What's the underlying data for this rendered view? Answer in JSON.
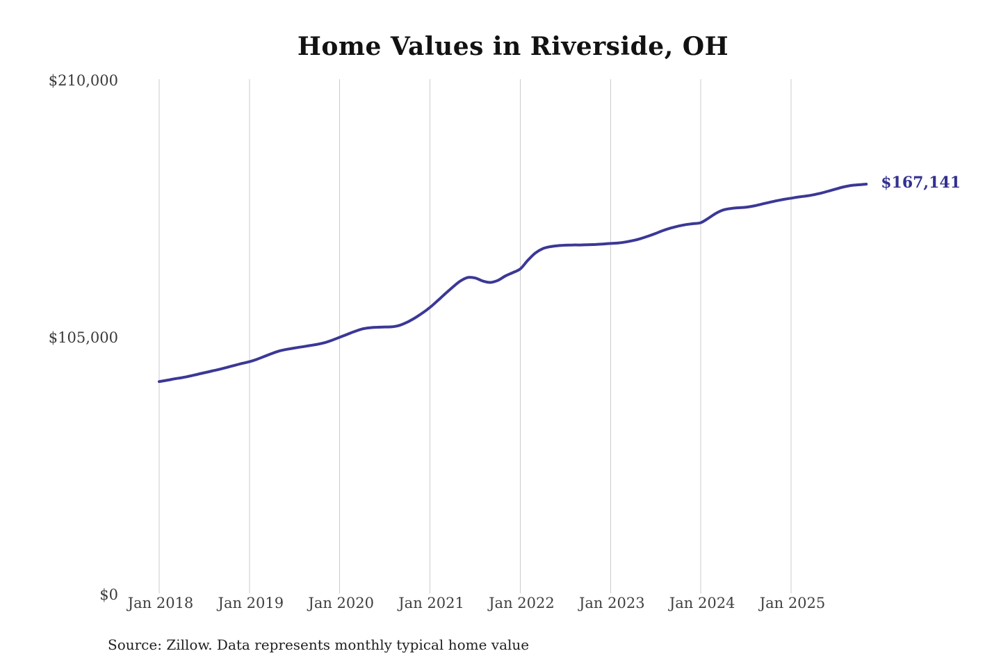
{
  "chart_data": {
    "type": "line",
    "title": "Home Values in Riverside, OH",
    "source": "Source: Zillow. Data represents monthly typical home value",
    "series_name": "Monthly typical home value",
    "currency": "USD",
    "start_month": "Jan 2018",
    "end_month": "Nov 2025",
    "end_value": 167141,
    "end_label": "$167,141",
    "ylim": [
      0,
      210000
    ],
    "y_tick_values": [
      0,
      105000,
      210000
    ],
    "y_tick_labels": [
      "$0",
      "$105,000",
      "$210,000"
    ],
    "x_tick_month_indices": [
      0,
      12,
      24,
      36,
      48,
      60,
      72,
      84
    ],
    "x_tick_labels": [
      "Jan 2018",
      "Jan 2019",
      "Jan 2020",
      "Jan 2021",
      "Jan 2022",
      "Jan 2023",
      "Jan 2024",
      "Jan 2025"
    ],
    "grid": "vertical-only",
    "legend": "none",
    "line_color": "#3b3896",
    "end_label_color": "#33308f",
    "gridline_color": "#cbcbcb",
    "values_monthly": [
      86500,
      87000,
      87600,
      88100,
      88700,
      89400,
      90100,
      90800,
      91500,
      92300,
      93100,
      93900,
      94600,
      95600,
      96800,
      98000,
      99000,
      99700,
      100200,
      100700,
      101200,
      101700,
      102400,
      103400,
      104600,
      105800,
      107000,
      108000,
      108500,
      108700,
      108800,
      108900,
      109500,
      110800,
      112500,
      114500,
      116800,
      119500,
      122300,
      125000,
      127500,
      129000,
      128800,
      127600,
      127000,
      127800,
      129600,
      131000,
      132500,
      136000,
      139000,
      140800,
      141600,
      142000,
      142200,
      142300,
      142300,
      142400,
      142500,
      142700,
      142900,
      143100,
      143500,
      144100,
      144900,
      145900,
      147000,
      148200,
      149200,
      150000,
      150600,
      151000,
      151400,
      153200,
      155200,
      156600,
      157200,
      157500,
      157700,
      158200,
      158900,
      159600,
      160300,
      160900,
      161400,
      161900,
      162300,
      162800,
      163500,
      164300,
      165200,
      166000,
      166600,
      166900,
      167141
    ]
  }
}
